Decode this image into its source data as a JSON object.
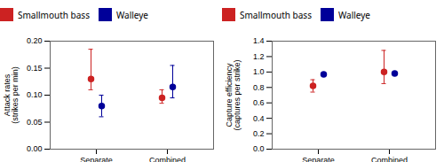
{
  "chart_data": [
    {
      "type": "errorbar",
      "ylabel": "Attack rates\n(strikes per min)",
      "categories": [
        "Separate",
        "Combined"
      ],
      "ylim": [
        0.0,
        0.2
      ],
      "yticks": [
        {
          "value": 0.0,
          "label": "0.00"
        },
        0.05,
        {
          "value": 0.1,
          "label": "0.10"
        },
        0.15,
        {
          "value": 0.2,
          "label": "0.20"
        }
      ],
      "legend": "top",
      "marker": "circle",
      "series": [
        {
          "name": "Smallmouth bass",
          "color": "#cc2222",
          "values": [
            0.13,
            0.095
          ],
          "yerr_low": [
            0.02,
            0.01
          ],
          "yerr_high": [
            0.055,
            0.015
          ]
        },
        {
          "name": "Walleye",
          "color": "#000099",
          "values": [
            0.08,
            0.115
          ],
          "yerr_low": [
            0.02,
            0.02
          ],
          "yerr_high": [
            0.02,
            0.04
          ]
        }
      ]
    },
    {
      "type": "errorbar",
      "ylabel": "Capture efficiency\n(captures per strike)",
      "categories": [
        "Separate",
        "Combined"
      ],
      "ylim": [
        0.0,
        1.4
      ],
      "yticks": [
        {
          "value": 0.0,
          "label": "0.0"
        },
        0.2,
        0.4,
        0.6,
        0.8,
        {
          "value": 1.0,
          "label": "1.0"
        },
        1.2,
        1.4
      ],
      "legend": "top",
      "marker": "circle",
      "series": [
        {
          "name": "Smallmouth bass",
          "color": "#cc2222",
          "values": [
            0.82,
            1.0
          ],
          "yerr_low": [
            0.08,
            0.15
          ],
          "yerr_high": [
            0.08,
            0.28
          ]
        },
        {
          "name": "Walleye",
          "color": "#000099",
          "values": [
            0.97,
            0.98
          ],
          "yerr_low": [
            0.01,
            0.01
          ],
          "yerr_high": [
            0.01,
            0.01
          ]
        }
      ]
    }
  ]
}
